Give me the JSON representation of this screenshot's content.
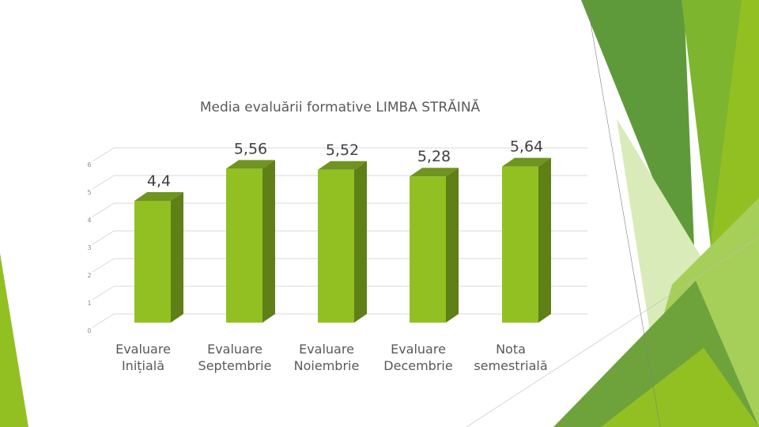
{
  "slide": {
    "colors": {
      "accent": "#92C023",
      "dark_green": "#5F7F17",
      "deco_dark": "#4E8A2A",
      "deco_mid": "#6EA33C",
      "deco_light": "#A6CF5A",
      "deco_pale": "#D9EBB8"
    }
  },
  "chart_data": {
    "type": "bar",
    "style": "3d-column",
    "title": "Media evaluării formative LIMBA STRĂINĂ",
    "categories": [
      [
        "Evaluare",
        "Inițială"
      ],
      [
        "Evaluare",
        "Septembrie"
      ],
      [
        "Evaluare",
        "Noiembrie"
      ],
      [
        "Evaluare",
        "Decembrie"
      ],
      [
        "Nota",
        "semestrială"
      ]
    ],
    "values": [
      4.4,
      5.56,
      5.52,
      5.28,
      5.64
    ],
    "value_labels": [
      "4,4",
      "5,56",
      "5,52",
      "5,28",
      "5,64"
    ],
    "y_ticks": [
      "0",
      "1",
      "2",
      "3",
      "4",
      "5",
      "6"
    ],
    "ylim": [
      0,
      6
    ],
    "grid": true,
    "legend": "none",
    "xlabel": "",
    "ylabel": ""
  }
}
